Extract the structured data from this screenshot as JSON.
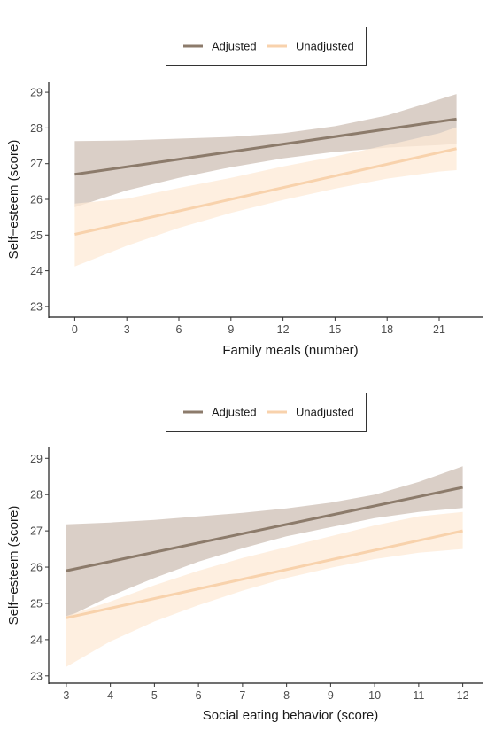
{
  "chart_data": [
    {
      "type": "line",
      "xlabel": "Family meals (number)",
      "ylabel": "Self−esteem (score)",
      "xlim": [
        -1.5,
        23.5
      ],
      "ylim": [
        22.7,
        29.3
      ],
      "xticks": [
        0,
        3,
        6,
        9,
        12,
        15,
        18,
        21
      ],
      "yticks": [
        23,
        24,
        25,
        26,
        27,
        28,
        29
      ],
      "grid": false,
      "legend_position": "top",
      "series": [
        {
          "name": "Adjusted",
          "color": "#8c7b6b",
          "band_color": "#cdbfb4",
          "x": [
            0,
            22
          ],
          "y": [
            26.7,
            28.25
          ],
          "band_x": [
            0,
            3,
            6,
            9,
            12,
            15,
            18,
            21,
            22
          ],
          "band_lower": [
            25.78,
            26.25,
            26.6,
            26.9,
            27.15,
            27.33,
            27.45,
            27.52,
            27.55
          ],
          "band_upper": [
            27.63,
            27.65,
            27.7,
            27.75,
            27.85,
            28.05,
            28.35,
            28.8,
            28.95
          ]
        },
        {
          "name": "Unadjusted",
          "color": "#f8d2ac",
          "band_color": "#fde9d6",
          "x": [
            0,
            22
          ],
          "y": [
            25.02,
            27.42
          ],
          "band_x": [
            0,
            3,
            6,
            9,
            12,
            15,
            18,
            21,
            22
          ],
          "band_lower": [
            24.12,
            24.7,
            25.2,
            25.62,
            25.98,
            26.3,
            26.58,
            26.78,
            26.82
          ],
          "band_upper": [
            25.88,
            26.02,
            26.32,
            26.6,
            26.92,
            27.2,
            27.52,
            27.85,
            28.02
          ]
        }
      ]
    },
    {
      "type": "line",
      "xlabel": "Social eating behavior (score)",
      "ylabel": "Self−esteem (score)",
      "xlim": [
        2.6,
        12.45
      ],
      "ylim": [
        22.8,
        29.3
      ],
      "xticks": [
        3,
        4,
        5,
        6,
        7,
        8,
        9,
        10,
        11,
        12
      ],
      "yticks": [
        23,
        24,
        25,
        26,
        27,
        28,
        29
      ],
      "grid": false,
      "legend_position": "top",
      "series": [
        {
          "name": "Adjusted",
          "color": "#8c7b6b",
          "band_color": "#cdbfb4",
          "x": [
            3,
            12
          ],
          "y": [
            25.9,
            28.2
          ],
          "band_x": [
            3,
            4,
            5,
            6,
            7,
            8,
            9,
            10,
            11,
            12
          ],
          "band_lower": [
            24.6,
            25.2,
            25.7,
            26.15,
            26.52,
            26.85,
            27.1,
            27.35,
            27.52,
            27.63
          ],
          "band_upper": [
            27.18,
            27.23,
            27.3,
            27.4,
            27.5,
            27.62,
            27.78,
            28.0,
            28.35,
            28.78
          ]
        },
        {
          "name": "Unadjusted",
          "color": "#f8d2ac",
          "band_color": "#fde9d6",
          "x": [
            3,
            12
          ],
          "y": [
            24.6,
            27.0
          ],
          "band_x": [
            3,
            4,
            5,
            6,
            7,
            8,
            9,
            10,
            11,
            12
          ],
          "band_lower": [
            23.25,
            23.95,
            24.5,
            24.95,
            25.35,
            25.7,
            25.98,
            26.22,
            26.4,
            26.5
          ],
          "band_upper": [
            24.65,
            25.05,
            25.5,
            25.9,
            26.25,
            26.55,
            26.85,
            27.15,
            27.4,
            27.52
          ]
        }
      ]
    }
  ]
}
